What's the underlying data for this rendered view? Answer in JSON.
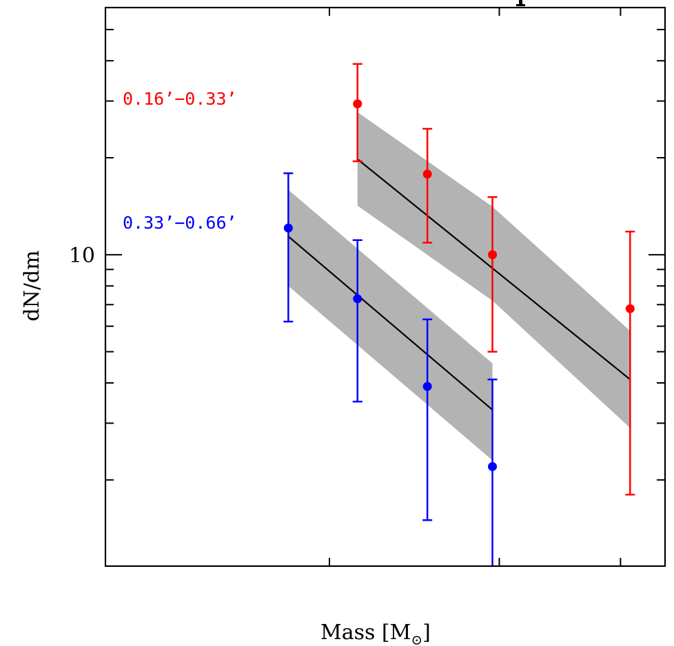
{
  "chart_data": {
    "type": "scatter",
    "title": "",
    "xlabel": "Mass [M",
    "xlabel_symbol": "⊙",
    "xlabel_close": "]",
    "ylabel": "dN/dm",
    "yscale": "log",
    "ylim": [
      1.08,
      58.5
    ],
    "y_major_ticks": [
      10
    ],
    "y_tick_labels": [
      "10"
    ],
    "y_minor_ticks": [
      2,
      3,
      4,
      5,
      6,
      7,
      8,
      9,
      20,
      30,
      40,
      50
    ],
    "x_unit_note": "mass bins (no tick labels shown)",
    "xlim": [
      -1.67,
      6.5
    ],
    "x_ticks": [
      1.6,
      4.08,
      5.85
    ],
    "grid": false,
    "series": [
      {
        "name": "0.16'−0.33'",
        "label": "0.16’−0.33’",
        "color": "#ff0000",
        "x": [
          2.01,
          3.03,
          3.98,
          5.99
        ],
        "y": [
          29.4,
          17.8,
          10.0,
          6.8
        ],
        "y_err_high": [
          39.1,
          24.6,
          15.1,
          11.8
        ],
        "y_err_low": [
          19.5,
          10.9,
          5.0,
          1.8
        ],
        "fit": {
          "x": [
            2.01,
            5.99
          ],
          "y": [
            19.8,
            4.1
          ],
          "band_upper": {
            "x": [
              2.01,
              3.98,
              5.99
            ],
            "y": [
              27.7,
              14.1,
              5.8
            ]
          },
          "band_lower": {
            "x": [
              2.01,
              3.98,
              5.99
            ],
            "y": [
              14.2,
              7.2,
              2.9
            ]
          }
        }
      },
      {
        "name": "0.33'−0.66'",
        "label": "0.33’−0.66’",
        "color": "#0000ff",
        "x": [
          1.0,
          2.01,
          3.03,
          3.98
        ],
        "y": [
          12.1,
          7.3,
          3.9,
          2.2
        ],
        "y_err_high": [
          17.9,
          11.1,
          6.3,
          4.1
        ],
        "y_err_low": [
          6.2,
          3.5,
          1.5,
          1.0
        ],
        "fit": {
          "x": [
            1.0,
            3.98
          ],
          "y": [
            11.4,
            3.3
          ],
          "band_upper": {
            "x": [
              1.0,
              3.98
            ],
            "y": [
              15.9,
              4.6
            ]
          },
          "band_lower": {
            "x": [
              1.0,
              3.98
            ],
            "y": [
              8.0,
              2.3
            ]
          }
        }
      }
    ],
    "colors": {
      "band": "#b3b3b3",
      "fit_line": "#000000",
      "axis": "#000000"
    }
  }
}
